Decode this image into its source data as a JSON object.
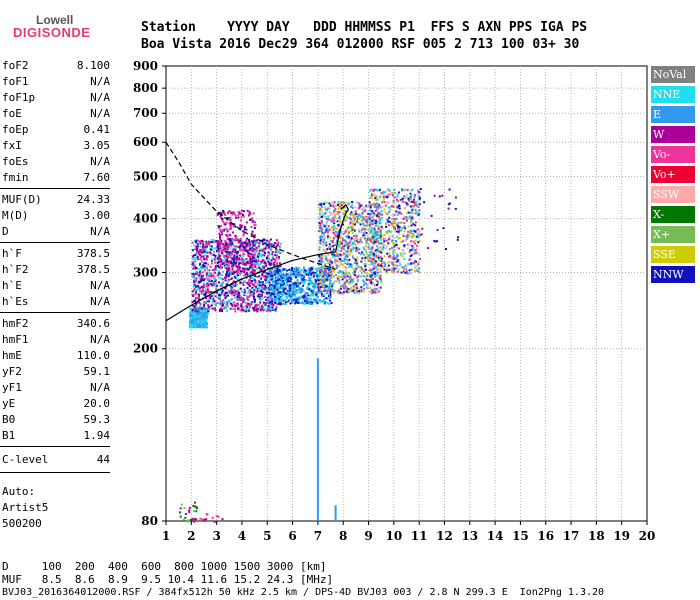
{
  "logo": {
    "top": "Lowell",
    "main": "DIGISONDE"
  },
  "header": {
    "row1": "Station    YYYY DAY   DDD HHMMSS P1  FFS S AXN PPS IGA PS",
    "row2": "Boa Vista 2016 Dec29 364 012000 RSF 005 2 713 100 03+ 30"
  },
  "params": {
    "group1": [
      {
        "name": "foF2",
        "value": "8.100"
      },
      {
        "name": "foF1",
        "value": "N/A"
      },
      {
        "name": "foF1p",
        "value": "N/A"
      },
      {
        "name": "foE",
        "value": "N/A"
      },
      {
        "name": "foEp",
        "value": "0.41"
      },
      {
        "name": "fxI",
        "value": "3.05"
      },
      {
        "name": "foEs",
        "value": "N/A"
      },
      {
        "name": "fmin",
        "value": "7.60"
      }
    ],
    "group2": [
      {
        "name": "MUF(D)",
        "value": "24.33"
      },
      {
        "name": "M(D)",
        "value": "3.00"
      },
      {
        "name": "D",
        "value": "N/A"
      }
    ],
    "group3": [
      {
        "name": "h`F",
        "value": "378.5"
      },
      {
        "name": "h`F2",
        "value": "378.5"
      },
      {
        "name": "h`E",
        "value": "N/A"
      },
      {
        "name": "h`Es",
        "value": "N/A"
      }
    ],
    "group4": [
      {
        "name": "hmF2",
        "value": "340.6"
      },
      {
        "name": "hmF1",
        "value": "N/A"
      },
      {
        "name": "hmE",
        "value": "110.0"
      },
      {
        "name": "yF2",
        "value": "59.1"
      },
      {
        "name": "yF1",
        "value": "N/A"
      },
      {
        "name": "yE",
        "value": "20.0"
      },
      {
        "name": "B0",
        "value": "59.3"
      },
      {
        "name": "B1",
        "value": "1.94"
      }
    ],
    "clevel": {
      "name": "C-level",
      "value": "44"
    }
  },
  "auto": {
    "line1": "Auto:",
    "line2": "Artist5",
    "line3": "500200"
  },
  "legend": [
    {
      "label": "NoVal",
      "color": "#808080"
    },
    {
      "label": "NNE",
      "color": "#22ddee"
    },
    {
      "label": "E",
      "color": "#3399ee"
    },
    {
      "label": "W",
      "color": "#aa0099"
    },
    {
      "label": "Vo-",
      "color": "#ee3399"
    },
    {
      "label": "Vo+",
      "color": "#ee0033"
    },
    {
      "label": "SSW",
      "color": "#ffaaaa"
    },
    {
      "label": "X-",
      "color": "#007700"
    },
    {
      "label": "X+",
      "color": "#77bb55"
    },
    {
      "label": "SSE",
      "color": "#cccc00"
    },
    {
      "label": "NNW",
      "color": "#1111bb"
    }
  ],
  "chart_data": {
    "type": "scatter",
    "title": "",
    "xlabel": "",
    "ylabel": "",
    "xlim": [
      1,
      20
    ],
    "ylim": [
      80,
      900
    ],
    "x_ticks": [
      "1",
      "2",
      "3",
      "4",
      "5",
      "6",
      "7",
      "8",
      "9",
      "10",
      "11",
      "12",
      "13",
      "14",
      "15",
      "16",
      "17",
      "18",
      "19",
      "20"
    ],
    "y_ticks": [
      "80",
      "200",
      "300",
      "400",
      "500",
      "600",
      "700",
      "800",
      "900"
    ],
    "y_scale": "log",
    "grid": "dotted",
    "profile_dashed": {
      "x": [
        1,
        1.5,
        2,
        3,
        4,
        5,
        6,
        6.5,
        7,
        7.5,
        7.7
      ],
      "y": [
        600,
        540,
        480,
        415,
        375,
        348,
        330,
        322,
        315,
        308,
        305
      ]
    },
    "profile_solid": {
      "x": [
        1,
        2,
        3,
        4,
        5,
        6,
        7,
        7.7,
        7.9,
        8.1,
        8.2,
        8.1,
        7.9
      ],
      "y": [
        232,
        252,
        272,
        290,
        305,
        320,
        330,
        335,
        380,
        410,
        420,
        430,
        420
      ]
    }
  },
  "bottom": {
    "row_d": "D     100  200  400  600  800 1000 1500 3000 [km]",
    "row_muf": "MUF   8.5  8.6  8.9  9.5 10.4 11.6 15.2 24.3 [MHz]",
    "footer": "BVJ03_2016364012000.RSF / 384fx512h 50 kHz 2.5 km / DPS-4D BVJ03 003 / 2.8 N 299.3 E  Ion2Png 1.3.20"
  }
}
